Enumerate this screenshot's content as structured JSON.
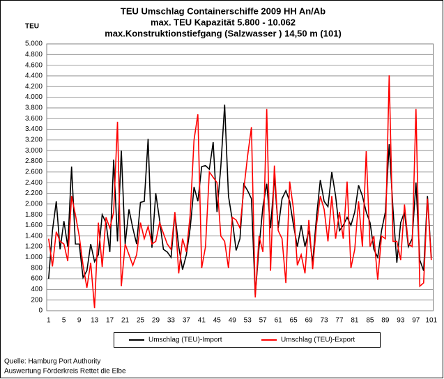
{
  "chart_data": {
    "type": "line",
    "title": [
      "TEU Umschlag Containerschiffe 2009 HH An/Ab",
      "max. TEU Kapazität  5.800 - 10.062",
      "max.Konstruktionstiefgang (Salzwasser ) 14,50 m (101)"
    ],
    "y_label": "TEU",
    "categories": [
      1,
      null,
      null,
      null,
      5,
      null,
      null,
      null,
      9,
      null,
      null,
      null,
      13,
      null,
      null,
      null,
      17,
      null,
      null,
      null,
      21,
      null,
      null,
      null,
      25,
      null,
      null,
      null,
      29,
      null,
      null,
      null,
      33,
      null,
      null,
      null,
      37,
      null,
      null,
      null,
      41,
      null,
      null,
      null,
      45,
      null,
      null,
      null,
      49,
      null,
      null,
      null,
      53,
      null,
      null,
      null,
      57,
      null,
      null,
      null,
      61,
      null,
      null,
      null,
      65,
      null,
      null,
      null,
      69,
      null,
      null,
      null,
      73,
      null,
      null,
      null,
      77,
      null,
      null,
      null,
      81,
      null,
      null,
      null,
      85,
      null,
      null,
      null,
      89,
      null,
      null,
      null,
      93,
      null,
      null,
      null,
      97,
      null,
      null,
      null,
      101
    ],
    "series": [
      {
        "name": "Umschlag (TEU)-Import",
        "color": "#000000",
        "values": [
          600,
          1500,
          2050,
          1150,
          1680,
          1200,
          2700,
          1250,
          1250,
          620,
          750,
          1250,
          920,
          1050,
          1800,
          1650,
          1100,
          2830,
          1300,
          3000,
          1250,
          1900,
          1550,
          1250,
          2030,
          2050,
          3220,
          1180,
          2200,
          1700,
          1150,
          1100,
          1000,
          1820,
          1200,
          770,
          1050,
          1550,
          2320,
          2050,
          2700,
          2720,
          2650,
          3160,
          1850,
          2700,
          3860,
          2150,
          1700,
          1130,
          1350,
          2370,
          2250,
          2100,
          300,
          1200,
          1950,
          2380,
          1550,
          2500,
          1550,
          2100,
          2250,
          2050,
          1600,
          1200,
          1600,
          1200,
          1500,
          900,
          1750,
          2450,
          2050,
          1950,
          2600,
          2150,
          1500,
          1600,
          1750,
          1600,
          1850,
          2350,
          2150,
          1850,
          1650,
          1150,
          1000,
          1500,
          1850,
          3120,
          1900,
          900,
          1650,
          1850,
          1200,
          1350,
          2400,
          950,
          750,
          2150,
          1000
        ]
      },
      {
        "name": "Umschlag (TEU)-Export",
        "color": "#ff0000",
        "values": [
          1350,
          830,
          1480,
          1300,
          1250,
          930,
          2150,
          1800,
          1400,
          850,
          430,
          900,
          50,
          1650,
          820,
          1750,
          1550,
          1850,
          3540,
          460,
          1250,
          1050,
          850,
          1050,
          1650,
          1350,
          1580,
          1250,
          1300,
          1650,
          1450,
          1250,
          1150,
          1850,
          700,
          1350,
          1100,
          1800,
          3200,
          3680,
          800,
          1200,
          2600,
          2500,
          2400,
          1400,
          1300,
          800,
          1750,
          1700,
          1550,
          2270,
          2900,
          3440,
          250,
          1400,
          1100,
          3780,
          750,
          2720,
          1500,
          1350,
          520,
          2420,
          1900,
          850,
          1050,
          700,
          1700,
          780,
          1600,
          2150,
          1900,
          1300,
          2150,
          1350,
          1850,
          1350,
          2420,
          800,
          1150,
          2050,
          1200,
          2990,
          1200,
          1400,
          580,
          1400,
          1350,
          4410,
          1300,
          1300,
          950,
          1990,
          1250,
          1200,
          3780,
          460,
          520,
          2100,
          950
        ]
      }
    ],
    "ylim": [
      0,
      5000
    ],
    "yticks": [
      0,
      {
        "value": 200,
        "label": "200"
      },
      {
        "value": 400,
        "label": "400"
      },
      {
        "value": 600,
        "label": "600"
      },
      {
        "value": 800,
        "label": "800"
      },
      {
        "value": 1000,
        "label": "1.000"
      },
      {
        "value": 1200,
        "label": "1.200"
      },
      {
        "value": 1400,
        "label": "1.400"
      },
      {
        "value": 1600,
        "label": "1.600"
      },
      {
        "value": 1800,
        "label": "1.800"
      },
      {
        "value": 2000,
        "label": "2.000"
      },
      {
        "value": 2200,
        "label": "2.200"
      },
      {
        "value": 2400,
        "label": "2.400"
      },
      {
        "value": 2600,
        "label": "2.600"
      },
      {
        "value": 2800,
        "label": "2.800"
      },
      {
        "value": 3000,
        "label": "3.000"
      },
      {
        "value": 3200,
        "label": "3.200"
      },
      {
        "value": 3400,
        "label": "3.400"
      },
      {
        "value": 3600,
        "label": "3.600"
      },
      {
        "value": 3800,
        "label": "3.800"
      },
      {
        "value": 4000,
        "label": "4.000"
      },
      {
        "value": 4200,
        "label": "4.200"
      },
      {
        "value": 4400,
        "label": "4.400"
      },
      {
        "value": 4600,
        "label": "4.600"
      },
      {
        "value": 4800,
        "label": "4.800"
      },
      {
        "value": 5000,
        "label": "5.000"
      }
    ],
    "grid": true,
    "legend": "bottom",
    "source": [
      "Quelle: Hamburg Port Authority",
      "Auswertung Förderkreis Rettet die Elbe"
    ]
  }
}
